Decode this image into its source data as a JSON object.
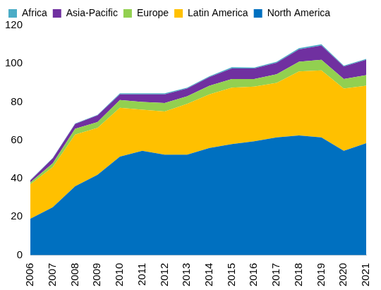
{
  "chart_data": {
    "type": "area",
    "stacked": true,
    "categories": [
      "2006",
      "2007",
      "2008",
      "2009",
      "2010",
      "2011",
      "2012",
      "2013",
      "2014",
      "2015",
      "2016",
      "2017",
      "2018",
      "2019",
      "2020",
      "2021"
    ],
    "series": [
      {
        "name": "North America",
        "color": "#0070C0",
        "values": [
          19,
          25,
          36,
          42,
          51.5,
          54.5,
          52.5,
          52.5,
          56,
          58,
          59.5,
          61.5,
          62.5,
          61.5,
          54.5,
          58.5
        ]
      },
      {
        "name": "Latin America",
        "color": "#FFC000",
        "values": [
          18,
          21,
          27,
          24.5,
          25.5,
          21.5,
          22.5,
          26.5,
          28,
          29.5,
          28.5,
          28.5,
          33.5,
          35,
          32.5,
          30
        ]
      },
      {
        "name": "Europe",
        "color": "#92D050",
        "values": [
          1,
          2,
          3,
          3,
          4,
          4,
          4.5,
          4,
          4.5,
          4.5,
          4,
          4.5,
          5,
          5.5,
          5,
          5.5
        ]
      },
      {
        "name": "Asia-Pacific",
        "color": "#7030A0",
        "values": [
          1,
          2.5,
          2.5,
          3.5,
          3,
          4,
          4.5,
          4,
          4.5,
          5.5,
          5.5,
          6,
          6.5,
          7.5,
          6.5,
          8
        ]
      },
      {
        "name": "Africa",
        "color": "#4BACC6",
        "values": [
          0.3,
          0.3,
          0.3,
          0.3,
          0.5,
          0.5,
          0.5,
          0.5,
          0.5,
          0.7,
          0.5,
          0.5,
          0.6,
          0.6,
          0.5,
          0.5
        ]
      }
    ],
    "ylim": [
      0,
      120
    ],
    "yticks": [
      0,
      20,
      40,
      60,
      80,
      100,
      120
    ],
    "grid": false,
    "legend": "upper left"
  }
}
